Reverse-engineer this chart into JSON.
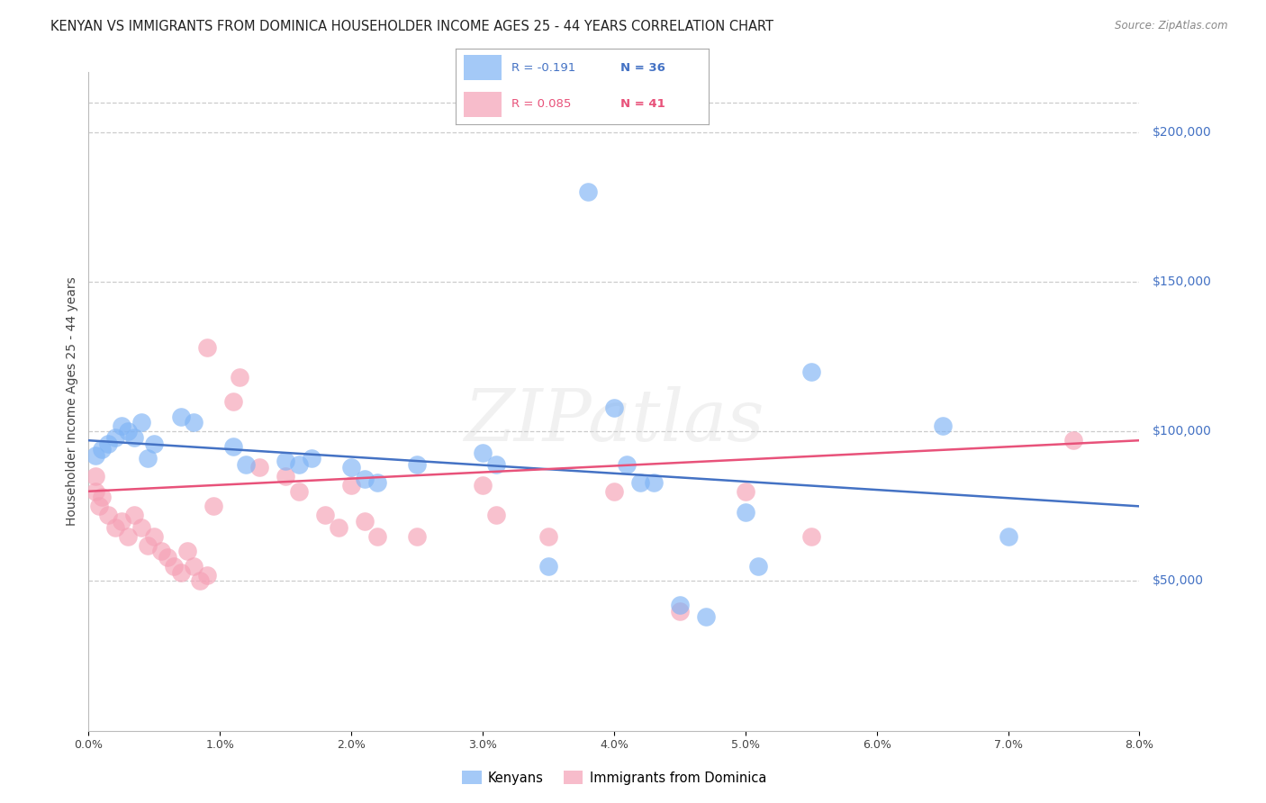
{
  "title": "KENYAN VS IMMIGRANTS FROM DOMINICA HOUSEHOLDER INCOME AGES 25 - 44 YEARS CORRELATION CHART",
  "source": "Source: ZipAtlas.com",
  "xlabel_ticks": [
    "0.0%",
    "1.0%",
    "2.0%",
    "3.0%",
    "4.0%",
    "5.0%",
    "6.0%",
    "7.0%",
    "8.0%"
  ],
  "xlabel_vals": [
    0.0,
    1.0,
    2.0,
    3.0,
    4.0,
    5.0,
    6.0,
    7.0,
    8.0
  ],
  "ylabel": "Householder Income Ages 25 - 44 years",
  "right_ytick_labels": [
    "$50,000",
    "$100,000",
    "$150,000",
    "$200,000"
  ],
  "right_ytick_vals": [
    50000,
    100000,
    150000,
    200000
  ],
  "ylim": [
    0,
    220000
  ],
  "xlim": [
    0,
    8.0
  ],
  "watermark": "ZIPatlas",
  "blue_color": "#7EB3F5",
  "pink_color": "#F5A0B5",
  "blue_line_color": "#4472C4",
  "pink_line_color": "#E8527A",
  "blue_label": "Kenyans",
  "pink_label": "Immigrants from Dominica",
  "blue_R": -0.191,
  "blue_N": 36,
  "pink_R": 0.085,
  "pink_N": 41,
  "blue_points": [
    [
      0.05,
      92000
    ],
    [
      0.1,
      94000
    ],
    [
      0.15,
      96000
    ],
    [
      0.2,
      98000
    ],
    [
      0.25,
      102000
    ],
    [
      0.3,
      100000
    ],
    [
      0.35,
      98000
    ],
    [
      0.4,
      103000
    ],
    [
      0.45,
      91000
    ],
    [
      0.5,
      96000
    ],
    [
      0.7,
      105000
    ],
    [
      0.8,
      103000
    ],
    [
      1.1,
      95000
    ],
    [
      1.2,
      89000
    ],
    [
      1.5,
      90000
    ],
    [
      1.6,
      89000
    ],
    [
      1.7,
      91000
    ],
    [
      2.0,
      88000
    ],
    [
      2.1,
      84000
    ],
    [
      2.2,
      83000
    ],
    [
      2.5,
      89000
    ],
    [
      3.0,
      93000
    ],
    [
      3.1,
      89000
    ],
    [
      3.5,
      55000
    ],
    [
      4.0,
      108000
    ],
    [
      4.1,
      89000
    ],
    [
      4.2,
      83000
    ],
    [
      4.3,
      83000
    ],
    [
      4.5,
      42000
    ],
    [
      5.0,
      73000
    ],
    [
      5.1,
      55000
    ],
    [
      5.5,
      120000
    ],
    [
      6.5,
      102000
    ],
    [
      7.0,
      65000
    ],
    [
      3.8,
      180000
    ],
    [
      4.7,
      38000
    ]
  ],
  "pink_points": [
    [
      0.05,
      85000
    ],
    [
      0.05,
      80000
    ],
    [
      0.08,
      75000
    ],
    [
      0.1,
      78000
    ],
    [
      0.15,
      72000
    ],
    [
      0.2,
      68000
    ],
    [
      0.25,
      70000
    ],
    [
      0.3,
      65000
    ],
    [
      0.35,
      72000
    ],
    [
      0.4,
      68000
    ],
    [
      0.45,
      62000
    ],
    [
      0.5,
      65000
    ],
    [
      0.55,
      60000
    ],
    [
      0.6,
      58000
    ],
    [
      0.65,
      55000
    ],
    [
      0.7,
      53000
    ],
    [
      0.75,
      60000
    ],
    [
      0.8,
      55000
    ],
    [
      0.85,
      50000
    ],
    [
      0.9,
      52000
    ],
    [
      0.95,
      75000
    ],
    [
      1.1,
      110000
    ],
    [
      1.15,
      118000
    ],
    [
      1.3,
      88000
    ],
    [
      1.5,
      85000
    ],
    [
      1.6,
      80000
    ],
    [
      1.8,
      72000
    ],
    [
      1.9,
      68000
    ],
    [
      2.0,
      82000
    ],
    [
      2.1,
      70000
    ],
    [
      2.2,
      65000
    ],
    [
      2.5,
      65000
    ],
    [
      3.0,
      82000
    ],
    [
      3.1,
      72000
    ],
    [
      3.5,
      65000
    ],
    [
      4.0,
      80000
    ],
    [
      5.0,
      80000
    ],
    [
      5.5,
      65000
    ],
    [
      4.5,
      40000
    ],
    [
      7.5,
      97000
    ],
    [
      0.9,
      128000
    ]
  ],
  "grid_color": "#cccccc",
  "bg_color": "#ffffff",
  "title_color": "#222222",
  "title_fontsize": 10.5,
  "ylabel_fontsize": 10,
  "tick_fontsize": 9,
  "right_tick_color": "#4472C4",
  "source_color": "#888888"
}
